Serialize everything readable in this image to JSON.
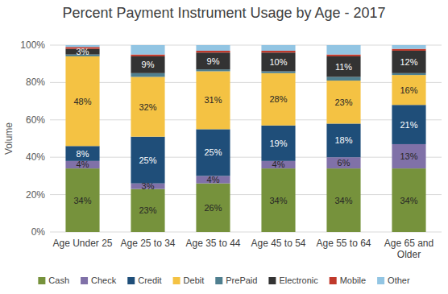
{
  "chart_data": {
    "type": "bar",
    "title": "Percent Payment Instrument Usage by Age - 2017",
    "y_label": "Volume",
    "categories": [
      "Age Under 25",
      "Age 25 to 34",
      "Age 35 to 44",
      "Age 45 to 54",
      "Age 55 to 64",
      "Age 65 and Older"
    ],
    "series": [
      {
        "name": "Cash",
        "color": "#76923c",
        "values": [
          34,
          23,
          26,
          34,
          34,
          34
        ],
        "value_labels": [
          "34%",
          "23%",
          "26%",
          "34%",
          "34%",
          "34%"
        ]
      },
      {
        "name": "Check",
        "color": "#8071a8",
        "values": [
          4,
          3,
          4,
          4,
          6,
          13
        ],
        "value_labels": [
          "4%",
          "3%",
          "4%",
          "4%",
          "6%",
          "13%"
        ]
      },
      {
        "name": "Credit",
        "color": "#1f4e79",
        "values": [
          8,
          25,
          25,
          19,
          18,
          21
        ],
        "value_labels": [
          "8%",
          "25%",
          "25%",
          "19%",
          "18%",
          "21%"
        ]
      },
      {
        "name": "Debit",
        "color": "#f4c243",
        "values": [
          48,
          32,
          31,
          28,
          23,
          16
        ],
        "value_labels": [
          "48%",
          "32%",
          "31%",
          "28%",
          "23%",
          "16%"
        ]
      },
      {
        "name": "PrePaid",
        "color": "#4f7f8f",
        "values": [
          1,
          2,
          1,
          1,
          2,
          1
        ]
      },
      {
        "name": "Electronic",
        "color": "#333333",
        "values": [
          3,
          9,
          9,
          10,
          11,
          12
        ],
        "value_labels": [
          "3%",
          "9%",
          "9%",
          "10%",
          "11%",
          "12%"
        ]
      },
      {
        "name": "Mobile",
        "color": "#c0392b",
        "values": [
          1,
          1,
          1,
          1,
          1,
          1
        ]
      },
      {
        "name": "Other",
        "color": "#92c5e3",
        "values": [
          1,
          5,
          3,
          3,
          5,
          2
        ]
      }
    ],
    "ylim": [
      0,
      100
    ],
    "yticks": [
      {
        "value": 0,
        "label": "0%"
      },
      {
        "value": 20,
        "label": "20%"
      },
      {
        "value": 40,
        "label": "40%"
      },
      {
        "value": 60,
        "label": "60%"
      },
      {
        "value": 80,
        "label": "80%"
      },
      {
        "value": 100,
        "label": "100%"
      }
    ],
    "grid": true,
    "stacked": true,
    "data_labels": true,
    "legend": "bottom"
  }
}
